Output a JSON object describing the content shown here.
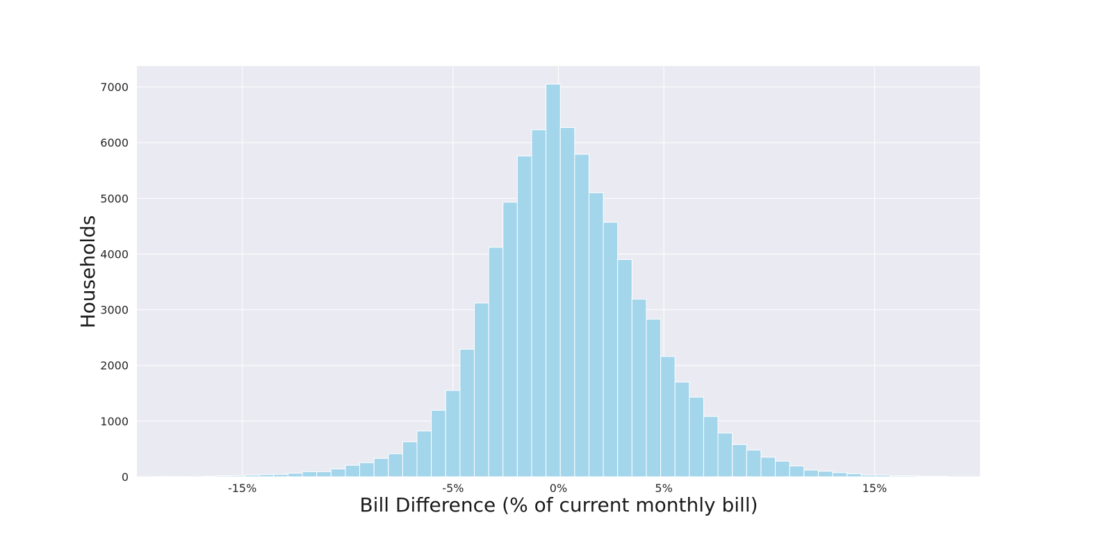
{
  "chart_data": {
    "type": "bar",
    "subtype": "histogram",
    "title": "",
    "xlabel": "Bill Difference (% of current monthly bill)",
    "ylabel": "Households",
    "xlim": [
      -20,
      20
    ],
    "ylim": [
      0,
      7375
    ],
    "grid": true,
    "bin_start": -18.95,
    "bin_width": 0.68,
    "values": [
      5,
      3,
      0,
      8,
      17,
      20,
      29,
      37,
      41,
      62,
      91,
      91,
      140,
      207,
      252,
      330,
      413,
      628,
      822,
      1194,
      1550,
      2290,
      3120,
      4120,
      4930,
      5760,
      6230,
      7050,
      6270,
      5790,
      5100,
      4570,
      3900,
      3190,
      2830,
      2160,
      1700,
      1430,
      1083,
      785,
      579,
      479,
      351,
      281,
      194,
      120,
      99,
      74,
      54,
      29,
      29,
      17,
      17,
      8,
      8
    ],
    "xticks": [
      -15,
      -5,
      0,
      5,
      15
    ],
    "xtick_labels": [
      "-15%",
      "-5%",
      "0%",
      "5%",
      "15%"
    ],
    "yticks": [
      0,
      1000,
      2000,
      3000,
      4000,
      5000,
      6000,
      7000
    ],
    "ytick_labels": [
      "0",
      "1000",
      "2000",
      "3000",
      "4000",
      "5000",
      "6000",
      "7000"
    ],
    "colors": {
      "bar": "#a3d5eb",
      "background": "#eaeaf2",
      "grid": "#ffffff"
    }
  }
}
